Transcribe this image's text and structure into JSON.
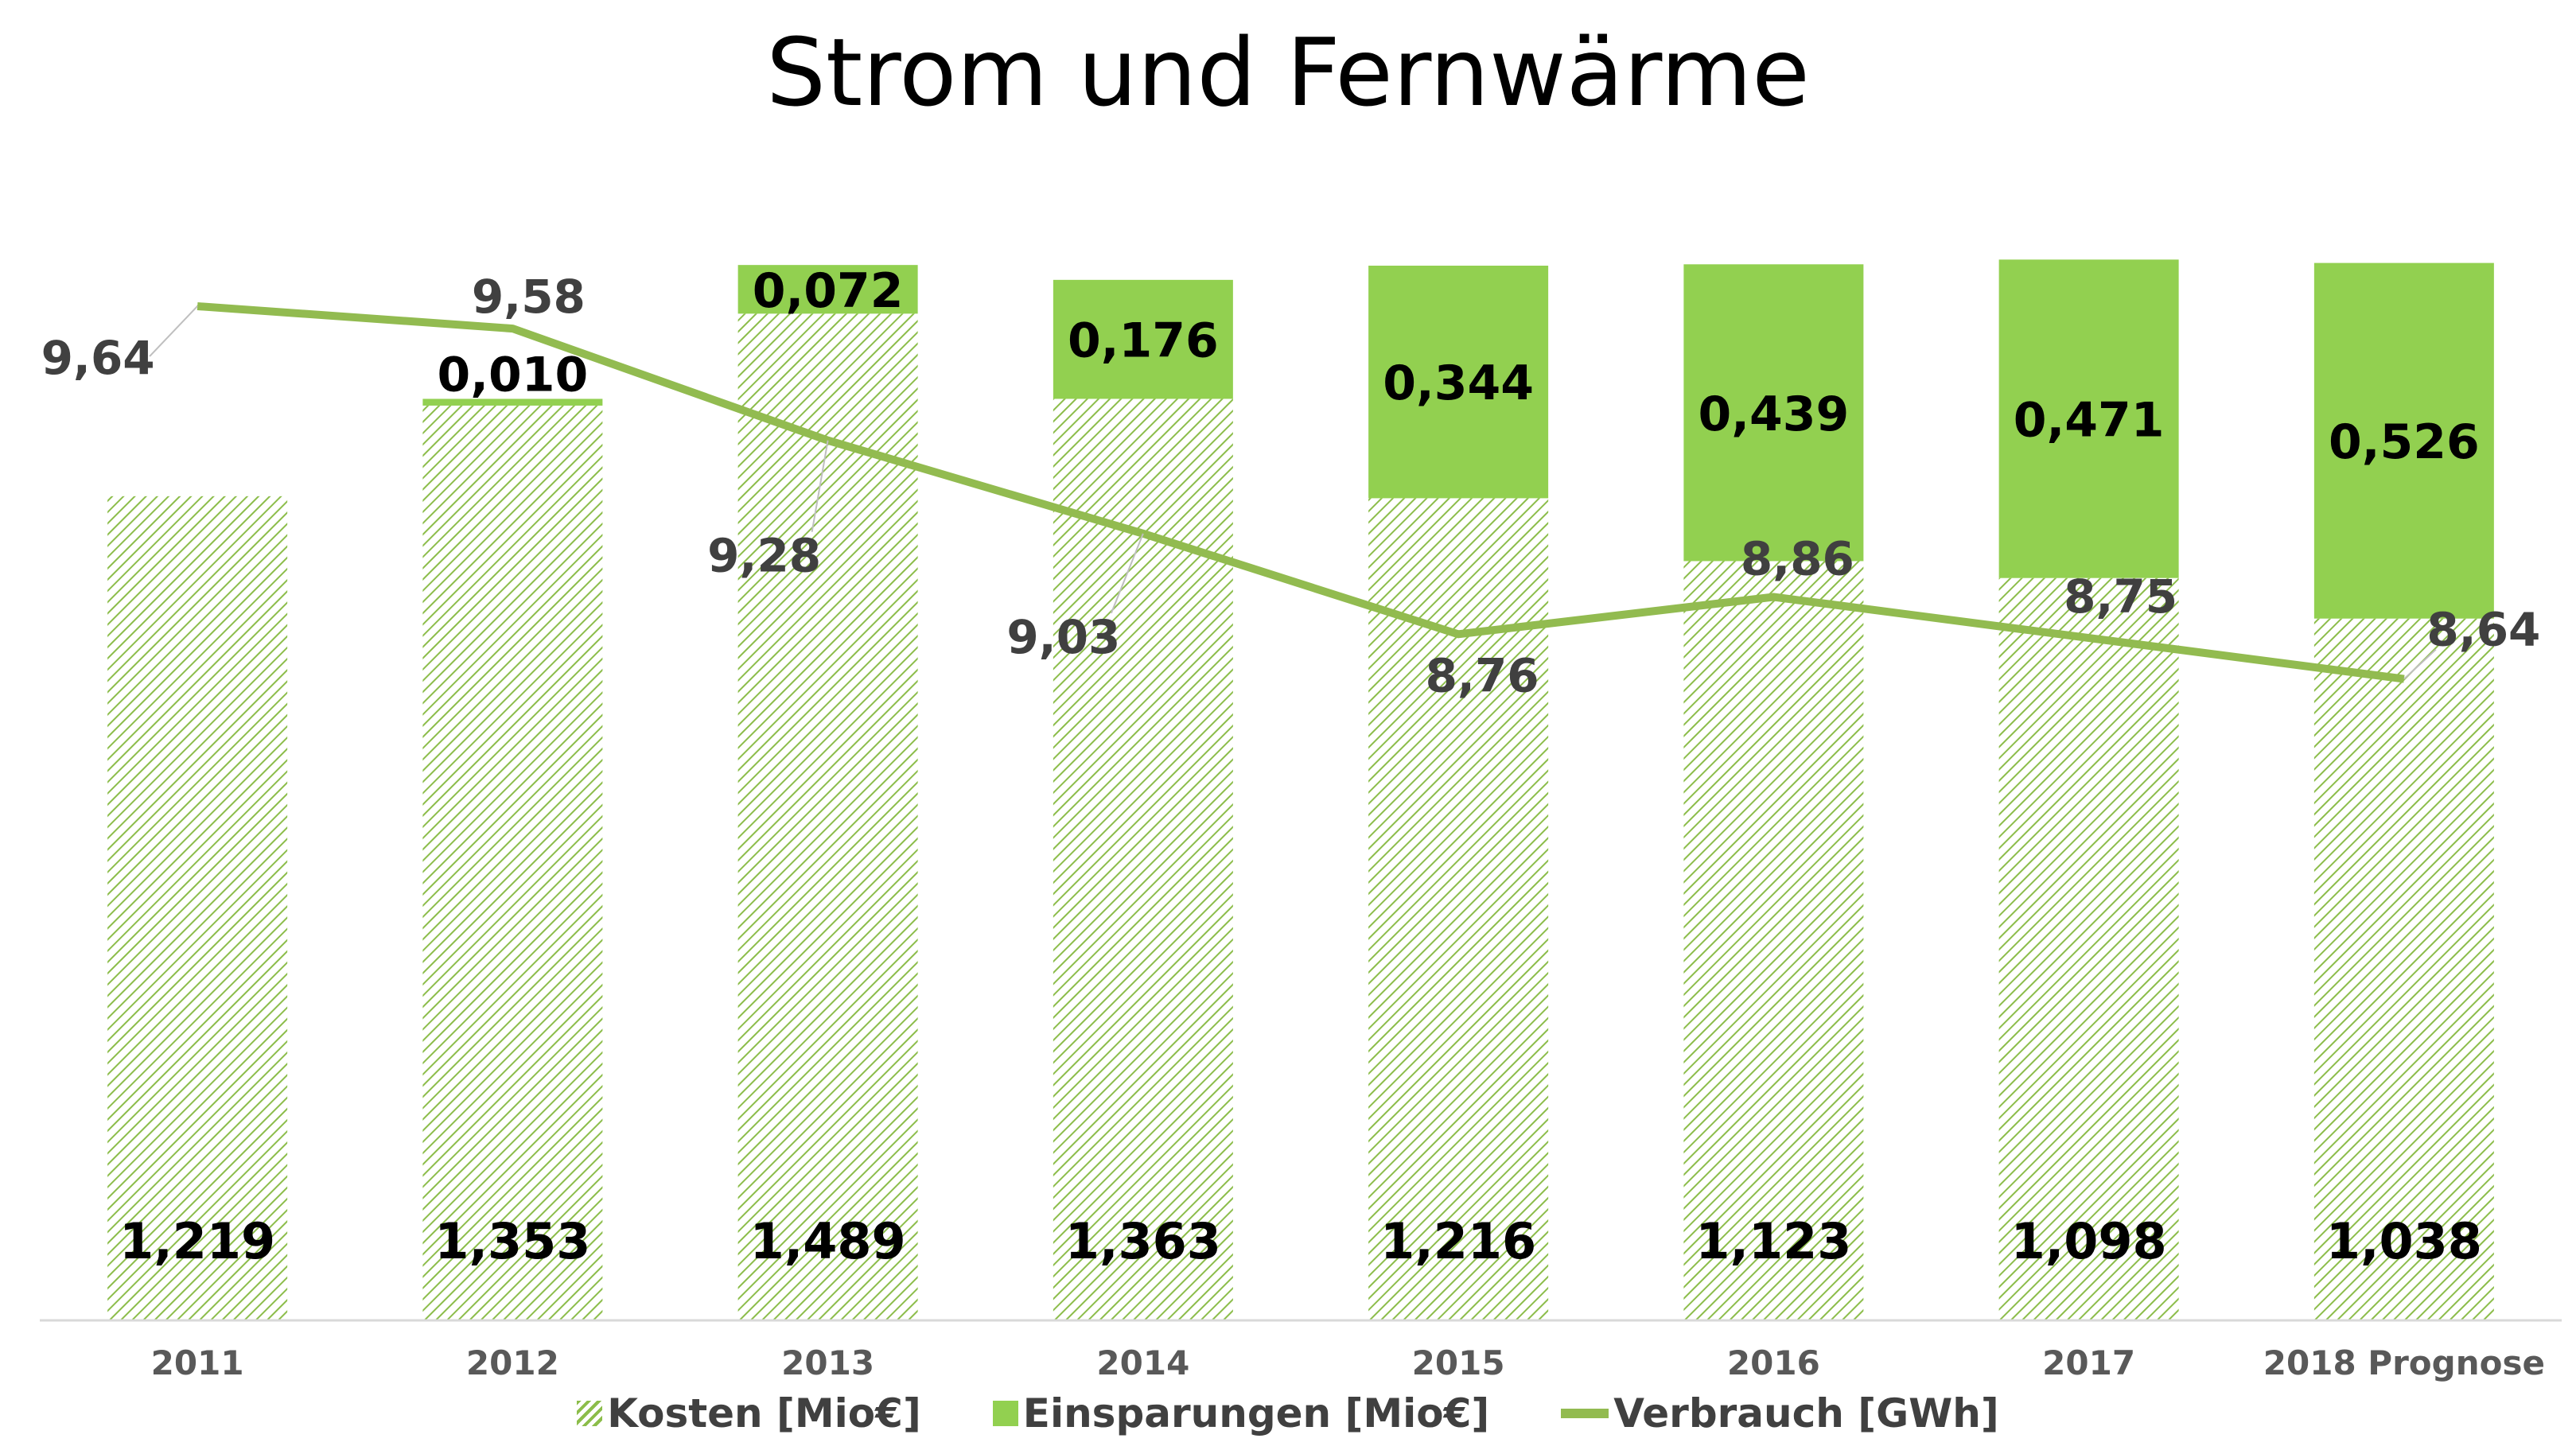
{
  "chart_data": {
    "type": "bar",
    "title": "Strom und Fernwärme",
    "categories": [
      "2011",
      "2012",
      "2013",
      "2014",
      "2015",
      "2016",
      "2017",
      "2018 Prognose"
    ],
    "series": [
      {
        "name": "Kosten [Mio€]",
        "kind": "bar-stacked",
        "values": [
          1.219,
          1.353,
          1.489,
          1.363,
          1.216,
          1.123,
          1.098,
          1.038
        ],
        "labels": [
          "1,219",
          "1,353",
          "1,489",
          "1,363",
          "1,216",
          "1,123",
          "1,098",
          "1,038"
        ]
      },
      {
        "name": "Einsparungen [Mio€]",
        "kind": "bar-stacked",
        "values": [
          0.0,
          0.01,
          0.072,
          0.176,
          0.344,
          0.439,
          0.471,
          0.526
        ],
        "labels": [
          "",
          "0,010",
          "0,072",
          "0,176",
          "0,344",
          "0,439",
          "0,471",
          "0,526"
        ]
      },
      {
        "name": "Verbrauch [GWh]",
        "kind": "line",
        "values": [
          9.64,
          9.58,
          9.28,
          9.03,
          8.76,
          8.86,
          8.75,
          8.64
        ],
        "labels": [
          "9,64",
          "9,58",
          "9,28",
          "9,03",
          "8,76",
          "8,86",
          "8,75",
          "8,64"
        ]
      }
    ],
    "ylim_bars": [
      0,
      1.6
    ],
    "ylim_line": [
      7.0,
      9.8
    ],
    "grid": false,
    "legend": "bottom"
  },
  "colors": {
    "hatch": "#8cbd4a",
    "savings": "#92d050",
    "line": "#92bb50",
    "axis": "#d9d9d9",
    "tick_text": "#595959",
    "bar_label": "#000000",
    "line_label": "#404040"
  }
}
